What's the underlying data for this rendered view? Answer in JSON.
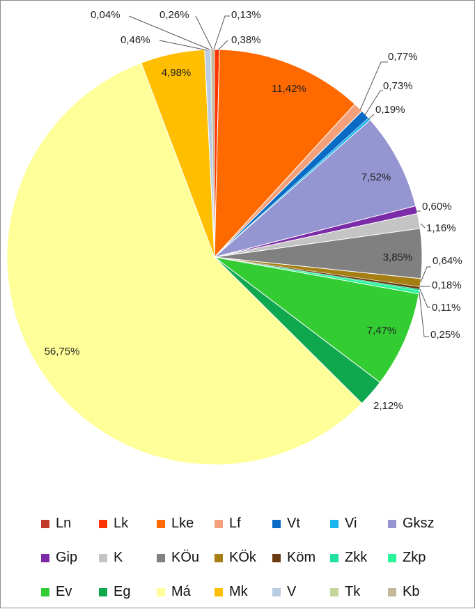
{
  "chart_data": {
    "type": "pie",
    "title": "",
    "slices": [
      {
        "label": "Ln",
        "value": 0.0,
        "display": "",
        "color": "#c0392b"
      },
      {
        "label": "Lk",
        "value": 0.38,
        "display": "0,38%",
        "color": "#ff3300"
      },
      {
        "label": "Lke",
        "value": 11.42,
        "display": "11,42%",
        "color": "#ff6a00"
      },
      {
        "label": "Lf",
        "value": 0.77,
        "display": "0,77%",
        "color": "#f4a07a"
      },
      {
        "label": "Vt",
        "value": 0.73,
        "display": "0,73%",
        "color": "#0a6bc4"
      },
      {
        "label": "Vi",
        "value": 0.19,
        "display": "0,19%",
        "color": "#19b5ee"
      },
      {
        "label": "Gksz",
        "value": 7.52,
        "display": "7,52%",
        "color": "#9595d2"
      },
      {
        "label": "Gip",
        "value": 0.6,
        "display": "0,60%",
        "color": "#7b2aa8"
      },
      {
        "label": "K",
        "value": 1.16,
        "display": "1,16%",
        "color": "#c4c4c4"
      },
      {
        "label": "KÖu",
        "value": 3.85,
        "display": "3,85%",
        "color": "#808080"
      },
      {
        "label": "KÖk",
        "value": 0.64,
        "display": "0,64%",
        "color": "#a57f12"
      },
      {
        "label": "Köm",
        "value": 0.18,
        "display": "0,18%",
        "color": "#6b3a10"
      },
      {
        "label": "Zkk",
        "value": 0.11,
        "display": "0,11%",
        "color": "#1fe0a0"
      },
      {
        "label": "Zkp",
        "value": 0.25,
        "display": "0,25%",
        "color": "#2bf59a"
      },
      {
        "label": "Ev",
        "value": 7.47,
        "display": "7,47%",
        "color": "#33cc33"
      },
      {
        "label": "Eg",
        "value": 2.12,
        "display": "2,12%",
        "color": "#0fa84e"
      },
      {
        "label": "Má",
        "value": 56.75,
        "display": "56,75%",
        "color": "#ffff99"
      },
      {
        "label": "Mk",
        "value": 4.98,
        "display": "4,98%",
        "color": "#ffbf00"
      },
      {
        "label": "V",
        "value": 0.46,
        "display": "0,46%",
        "color": "#b8cce4"
      },
      {
        "label": "Tk",
        "value": 0.04,
        "display": "0,04%",
        "color": "#c4d79b"
      },
      {
        "label": "Kb",
        "value": 0.26,
        "display": "0,26%",
        "color": "#c4b79a"
      }
    ],
    "extra_labels": [
      {
        "display": "0,13%",
        "after_slice": "Kb"
      }
    ],
    "legend": {
      "position": "bottom",
      "rows": [
        [
          "Ln",
          "Lk",
          "Lke",
          "Lf",
          "Vt",
          "Vi",
          "Gksz"
        ],
        [
          "Gip",
          "K",
          "KÖu",
          "KÖk",
          "Köm",
          "Zkk",
          "Zkp"
        ],
        [
          "Ev",
          "Eg",
          "Má",
          "Mk",
          "V",
          "Tk",
          "Kb"
        ]
      ]
    }
  }
}
